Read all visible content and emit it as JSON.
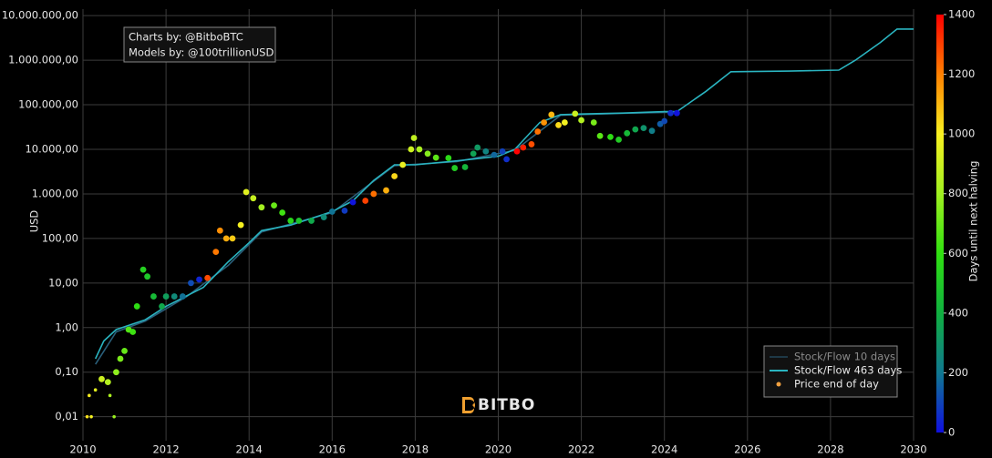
{
  "chart_data": {
    "type": "line",
    "annotations": [
      "Charts by: @BitboBTC",
      "Models by: @100trillionUSD"
    ],
    "watermark": "BITBO",
    "y_label": "USD",
    "ylog": true,
    "grid": true,
    "legend": "bottom-right",
    "xlim": [
      2010,
      2030
    ],
    "xticks": [
      2010,
      2012,
      2014,
      2016,
      2018,
      2020,
      2022,
      2024,
      2026,
      2028,
      2030
    ],
    "ylim": [
      0.0029,
      14000000
    ],
    "yticks": [
      {
        "value": 0.01,
        "label": "0,01"
      },
      {
        "value": 0.1,
        "label": "0,10"
      },
      {
        "value": 1,
        "label": "1,00"
      },
      {
        "value": 10,
        "label": "10,00"
      },
      {
        "value": 100,
        "label": "100,00"
      },
      {
        "value": 1000,
        "label": "1.000,00"
      },
      {
        "value": 10000,
        "label": "10.000,00"
      },
      {
        "value": 100000,
        "label": "100.000,00"
      },
      {
        "value": 1000000,
        "label": "1.000.000,00"
      },
      {
        "value": 10000000,
        "label": "10.000.000,00"
      }
    ],
    "colorbar": {
      "title": "Days until next halving",
      "lim": [
        0,
        1400
      ],
      "ticks": [
        0,
        200,
        400,
        600,
        800,
        1000,
        1200,
        1400
      ],
      "colors": [
        "#1010e0",
        "#107890",
        "#10b040",
        "#30e010",
        "#a0f020",
        "#f8f020",
        "#ff8000",
        "#ff0000"
      ]
    },
    "series": [
      {
        "name": "Stock/Flow 10 days",
        "type": "line",
        "color": "#2a5f7a",
        "x": [
          2010.3,
          2010.8,
          2011.5,
          2012.5,
          2013.5,
          2014.3,
          2016.0,
          2017.5,
          2019.0,
          2020.4,
          2021.5,
          2023.0,
          2024.3
        ],
        "values": [
          0.15,
          0.8,
          1.4,
          5,
          25,
          140,
          380,
          4300,
          5300,
          9500,
          58000,
          64000,
          68000
        ]
      },
      {
        "name": "Stock/Flow 463 days",
        "type": "line",
        "color": "#2ab4c0",
        "x": [
          2010.3,
          2010.5,
          2010.8,
          2011.5,
          2012.0,
          2012.9,
          2013.5,
          2014.0,
          2014.3,
          2015.0,
          2016.0,
          2016.5,
          2017.0,
          2017.5,
          2018.0,
          2019.0,
          2020.0,
          2020.4,
          2021.0,
          2021.5,
          2022.0,
          2023.0,
          2024.0,
          2024.3,
          2025.0,
          2025.6,
          2027.0,
          2028.2,
          2028.6,
          2029.2,
          2029.6,
          2030.0
        ],
        "values": [
          0.2,
          0.5,
          0.9,
          1.5,
          3,
          8,
          30,
          80,
          150,
          200,
          400,
          700,
          2000,
          4500,
          4500,
          5500,
          7000,
          10000,
          40000,
          60000,
          62000,
          65000,
          70000,
          70000,
          200000,
          550000,
          570000,
          600000,
          1000000,
          2500000,
          5000000,
          5000000
        ]
      },
      {
        "name": "Price end of day",
        "type": "scatter",
        "color": "#f0a040",
        "x": [
          2010.1,
          2010.15,
          2010.2,
          2010.3,
          2010.45,
          2010.6,
          2010.65,
          2010.75,
          2010.8,
          2010.9,
          2011.0,
          2011.1,
          2011.2,
          2011.3,
          2011.45,
          2011.55,
          2011.7,
          2011.9,
          2012.0,
          2012.2,
          2012.4,
          2012.6,
          2012.8,
          2013.0,
          2013.2,
          2013.3,
          2013.45,
          2013.6,
          2013.8,
          2013.93,
          2014.1,
          2014.3,
          2014.6,
          2014.8,
          2015.0,
          2015.2,
          2015.5,
          2015.8,
          2016.0,
          2016.3,
          2016.5,
          2016.8,
          2017.0,
          2017.3,
          2017.5,
          2017.7,
          2017.9,
          2017.97,
          2018.1,
          2018.3,
          2018.5,
          2018.8,
          2018.95,
          2019.2,
          2019.4,
          2019.5,
          2019.7,
          2019.9,
          2020.1,
          2020.2,
          2020.45,
          2020.6,
          2020.8,
          2020.95,
          2021.1,
          2021.28,
          2021.45,
          2021.6,
          2021.85,
          2022.0,
          2022.3,
          2022.45,
          2022.7,
          2022.9,
          2023.1,
          2023.3,
          2023.5,
          2023.7,
          2023.9,
          2024.0,
          2024.15,
          2024.3
        ],
        "values": [
          0.01,
          0.03,
          0.01,
          0.04,
          0.07,
          0.06,
          0.03,
          0.01,
          0.1,
          0.2,
          0.3,
          0.9,
          0.8,
          3,
          20,
          14,
          5,
          3,
          5,
          5,
          5,
          10,
          12,
          13,
          50,
          150,
          100,
          100,
          200,
          1100,
          800,
          500,
          550,
          380,
          250,
          250,
          250,
          300,
          400,
          420,
          650,
          700,
          1000,
          1200,
          2500,
          4500,
          10000,
          18000,
          10000,
          8000,
          6500,
          6400,
          3800,
          4000,
          8000,
          11000,
          9000,
          7500,
          9000,
          6000,
          9000,
          11000,
          13000,
          25000,
          40000,
          60000,
          35000,
          40000,
          63000,
          45000,
          40000,
          20000,
          19000,
          16500,
          23000,
          28000,
          30000,
          26000,
          37000,
          43000,
          65000,
          65000
        ],
        "z": [
          1026,
          1007,
          989,
          953,
          898,
          843,
          825,
          788,
          770,
          734,
          697,
          661,
          624,
          588,
          533,
          496,
          442,
          369,
          332,
          259,
          186,
          113,
          40,
          1285,
          1212,
          1175,
          1121,
          1066,
          993,
          945,
          883,
          810,
          701,
          628,
          555,
          482,
          372,
          263,
          190,
          80,
          7,
          1299,
          1226,
          1117,
          1044,
          971,
          898,
          872,
          825,
          752,
          679,
          569,
          515,
          423,
          350,
          314,
          241,
          168,
          95,
          58,
          1400,
          1351,
          1278,
          1223,
          1168,
          1102,
          1040,
          986,
          894,
          840,
          730,
          675,
          584,
          511,
          438,
          365,
          292,
          219,
          146,
          110,
          55,
          5
        ]
      }
    ]
  }
}
